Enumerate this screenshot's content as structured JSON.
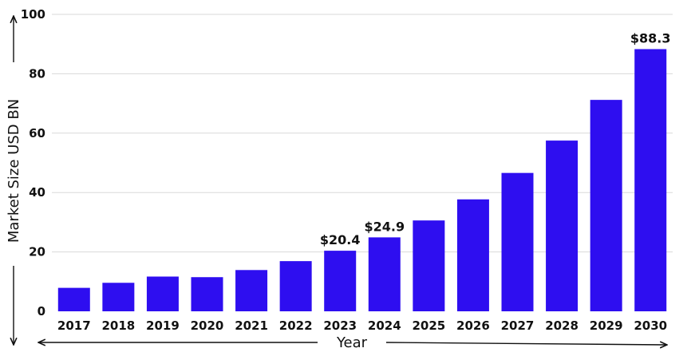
{
  "chart_data": {
    "type": "bar",
    "categories": [
      "2017",
      "2018",
      "2019",
      "2020",
      "2021",
      "2022",
      "2023",
      "2024",
      "2025",
      "2026",
      "2027",
      "2028",
      "2029",
      "2030"
    ],
    "values": [
      7.9,
      9.6,
      11.7,
      11.5,
      13.9,
      16.9,
      20.4,
      24.9,
      30.6,
      37.7,
      46.6,
      57.5,
      71.2,
      88.3
    ],
    "data_labels": [
      {
        "index": 6,
        "text": "$20.4"
      },
      {
        "index": 7,
        "text": "$24.9"
      },
      {
        "index": 13,
        "text": "$88.3"
      }
    ],
    "xlabel": "Year",
    "ylabel": "Market Size USD BN",
    "ylim": [
      0,
      100
    ],
    "yticks": [
      0,
      20,
      40,
      60,
      80,
      100
    ],
    "grid": true,
    "bar_color": "#2e0ef0",
    "grid_color": "#d9d9d9",
    "text_color": "#111111"
  }
}
